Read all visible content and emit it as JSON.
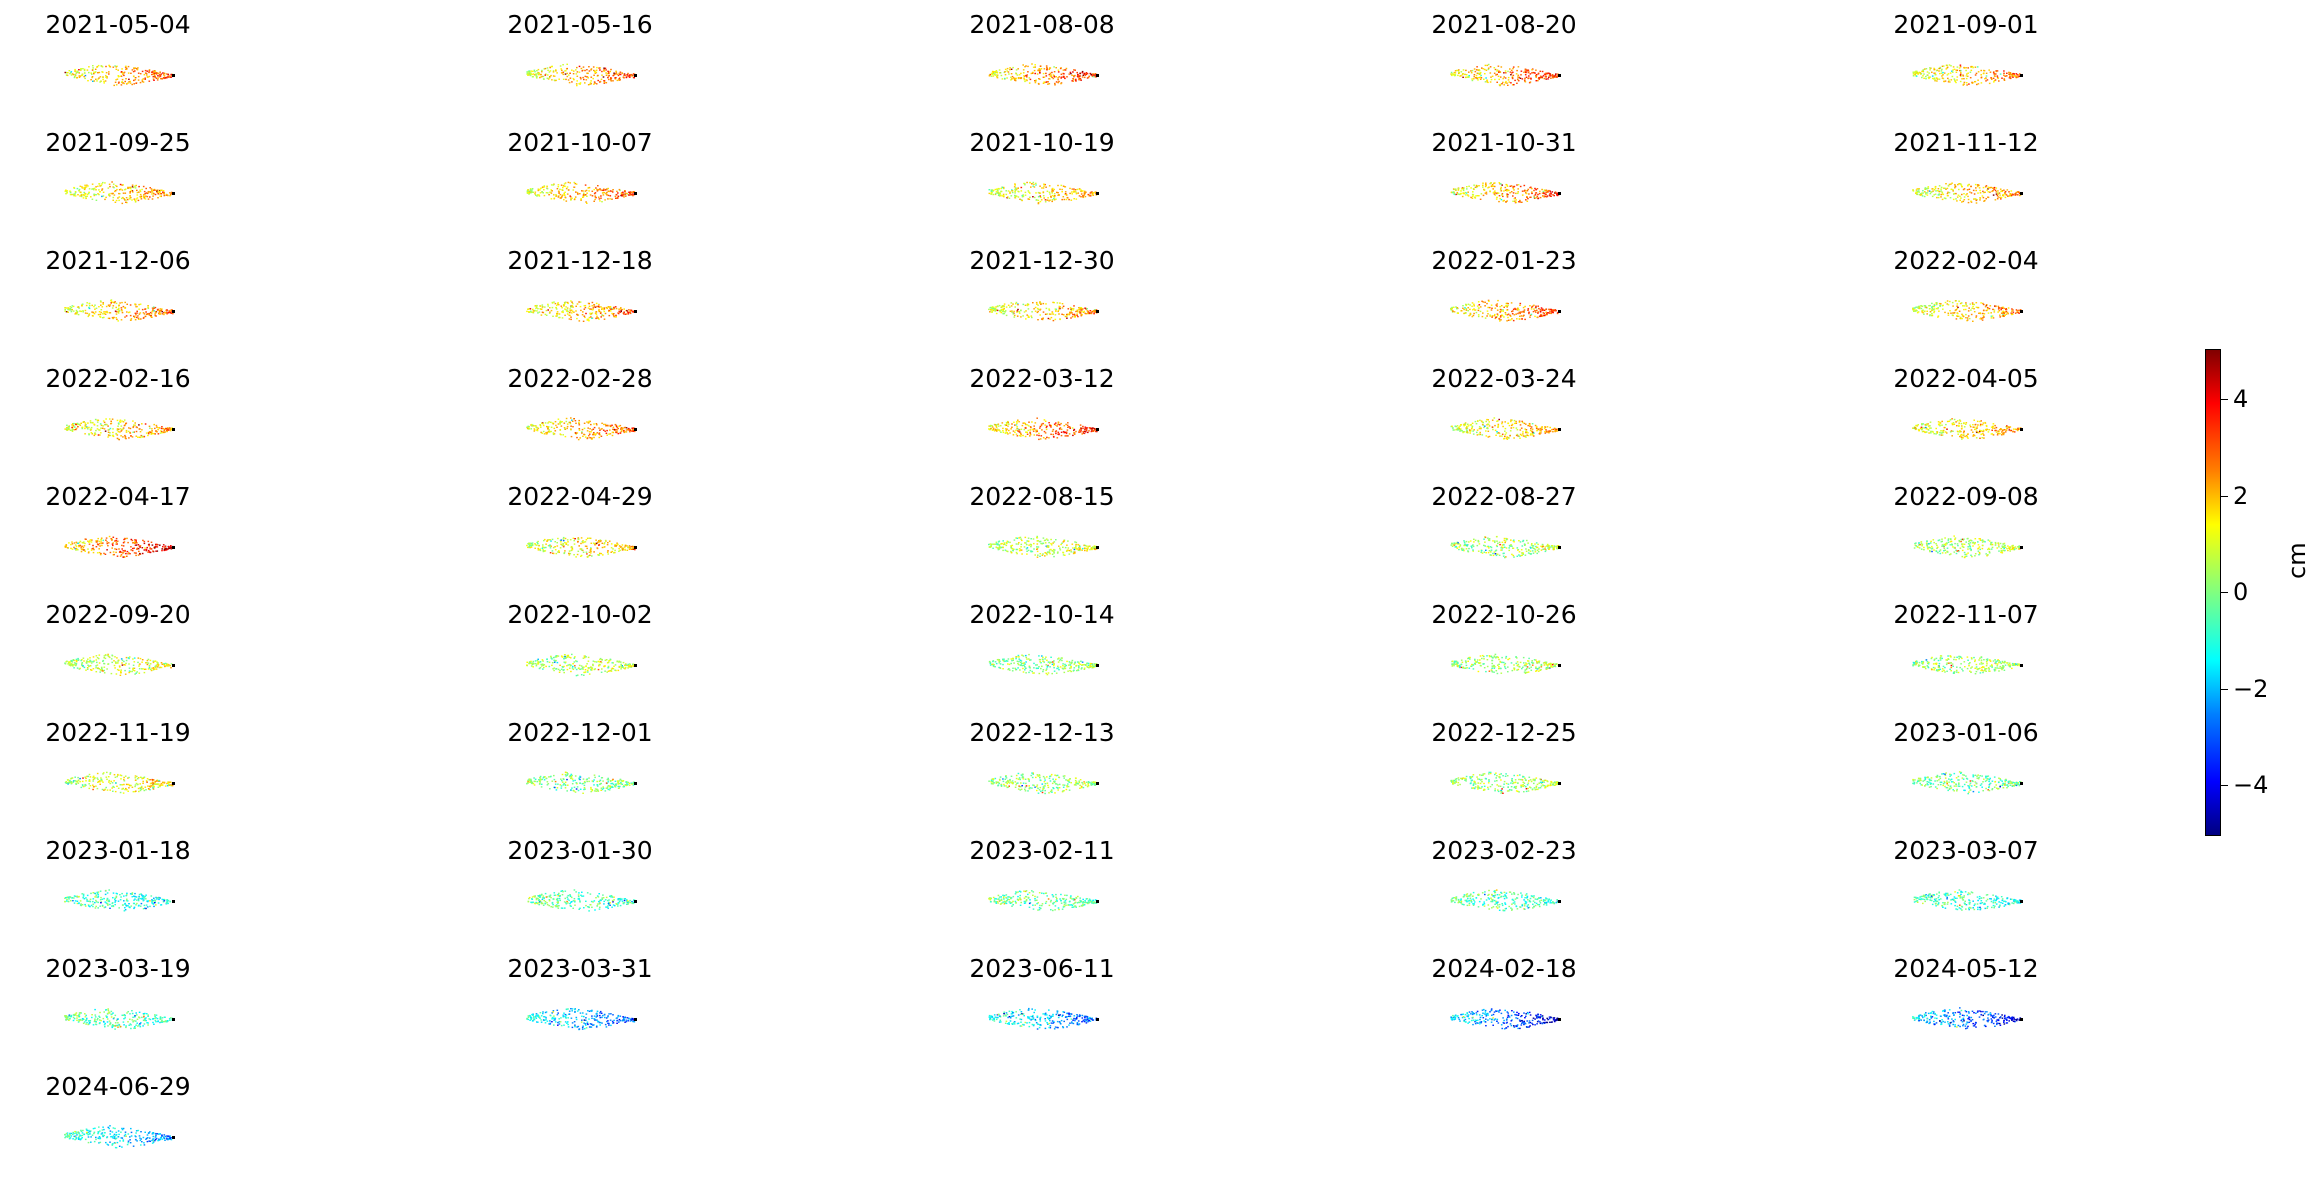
{
  "chart_data": {
    "type": "scatter",
    "panel_titles": [
      "2021-05-04",
      "2021-05-16",
      "2021-08-08",
      "2021-08-20",
      "2021-09-01",
      "2021-09-25",
      "2021-10-07",
      "2021-10-19",
      "2021-10-31",
      "2021-11-12",
      "2021-12-06",
      "2021-12-18",
      "2021-12-30",
      "2022-01-23",
      "2022-02-04",
      "2022-02-16",
      "2022-02-28",
      "2022-03-12",
      "2022-03-24",
      "2022-04-05",
      "2022-04-17",
      "2022-04-29",
      "2022-08-15",
      "2022-08-27",
      "2022-09-08",
      "2022-09-20",
      "2022-10-02",
      "2022-10-14",
      "2022-10-26",
      "2022-11-07",
      "2022-11-19",
      "2022-12-01",
      "2022-12-13",
      "2022-12-25",
      "2023-01-06",
      "2023-01-18",
      "2023-01-30",
      "2023-02-11",
      "2023-02-23",
      "2023-03-07",
      "2023-03-19",
      "2023-03-31",
      "2023-06-11",
      "2024-02-18",
      "2024-05-12",
      "2024-06-29"
    ],
    "colormap": "jet",
    "colorbar": {
      "label": "cm",
      "range": [
        -5,
        5
      ],
      "ticks": [
        4,
        2,
        0,
        -2,
        -4
      ],
      "tick_labels": [
        "4",
        "2",
        "0",
        "−2",
        "−4"
      ]
    },
    "panel_mean_displacement_cm": [
      2.5,
      2.5,
      2.8,
      2.8,
      2.2,
      2.0,
      2.5,
      1.8,
      2.5,
      2.0,
      2.2,
      2.2,
      2.0,
      2.6,
      2.0,
      2.0,
      2.4,
      3.0,
      1.8,
      2.0,
      3.5,
      1.5,
      1.0,
      0.5,
      0.6,
      1.0,
      0.6,
      0.2,
      0.5,
      0.4,
      1.2,
      0.0,
      0.2,
      0.4,
      -0.2,
      -1.0,
      -0.5,
      -0.3,
      -0.6,
      -0.8,
      -0.5,
      -2.5,
      -2.5,
      -3.5,
      -3.5,
      -2.0
    ],
    "axes_visible": false
  }
}
